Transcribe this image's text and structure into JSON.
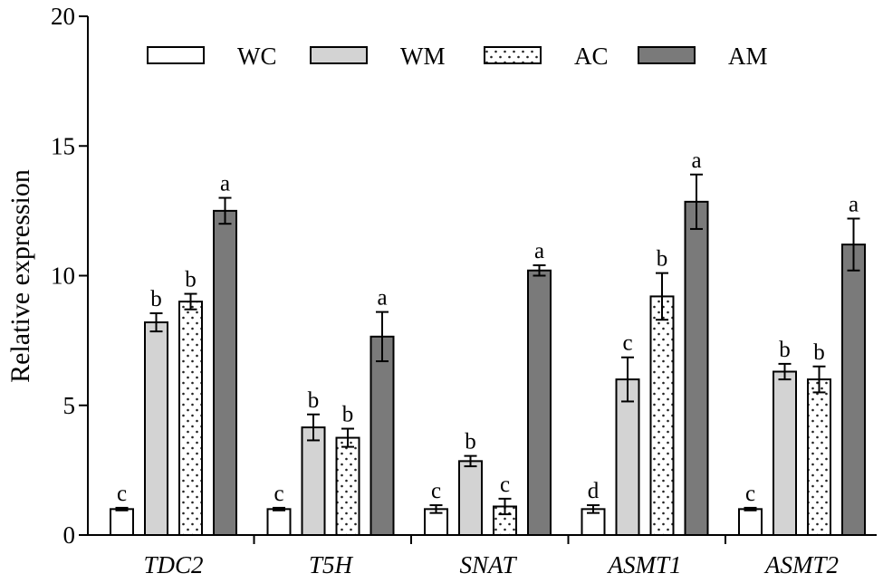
{
  "chart_data": {
    "type": "bar",
    "title": "",
    "xlabel": "",
    "ylabel": "Relative expression",
    "ylim": [
      0,
      20
    ],
    "yticks": [
      0,
      5,
      10,
      15,
      20
    ],
    "grid": false,
    "legend_position": "top",
    "categories": [
      "TDC2",
      "T5H",
      "SNAT",
      "ASMT1",
      "ASMT2"
    ],
    "series": [
      {
        "name": "WC",
        "pattern": "white",
        "color": "#ffffff",
        "values": [
          1.0,
          1.0,
          1.0,
          1.0,
          1.0
        ],
        "errors": [
          0.05,
          0.05,
          0.15,
          0.15,
          0.05
        ],
        "letters": [
          "c",
          "c",
          "c",
          "d",
          "c"
        ]
      },
      {
        "name": "WM",
        "pattern": "light-gray",
        "color": "#d3d3d3",
        "values": [
          8.2,
          4.15,
          2.85,
          6.0,
          6.3
        ],
        "errors": [
          0.35,
          0.5,
          0.2,
          0.85,
          0.3
        ],
        "letters": [
          "b",
          "b",
          "b",
          "c",
          "b"
        ]
      },
      {
        "name": "AC",
        "pattern": "dotted",
        "color": "#ffffff",
        "values": [
          9.0,
          3.75,
          1.1,
          9.2,
          6.0
        ],
        "errors": [
          0.3,
          0.35,
          0.3,
          0.9,
          0.5
        ],
        "letters": [
          "b",
          "b",
          "c",
          "b",
          "b"
        ]
      },
      {
        "name": "AM",
        "pattern": "dark-gray",
        "color": "#7a7a7a",
        "values": [
          12.5,
          7.65,
          10.2,
          12.85,
          11.2
        ],
        "errors": [
          0.5,
          0.95,
          0.2,
          1.05,
          1.0
        ],
        "letters": [
          "a",
          "a",
          "a",
          "a",
          "a"
        ]
      }
    ]
  }
}
